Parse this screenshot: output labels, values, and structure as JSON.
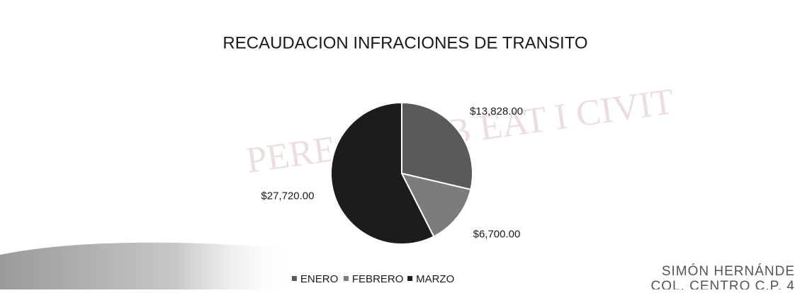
{
  "chart_data": {
    "type": "pie",
    "title": "RECAUDACION INFRACIONES DE TRANSITO",
    "categories": [
      "ENERO",
      "FEBRERO",
      "MARZO"
    ],
    "values": [
      13828,
      6700,
      27720
    ],
    "value_labels": [
      "$13,828.00",
      "$6,700.00",
      "$27,720.00"
    ],
    "colors": [
      "#5a5a5a",
      "#7c7c7c",
      "#1c1c1c"
    ],
    "legend": "bottom"
  },
  "watermark": "PEREGRINI B EAT I CIVIT",
  "footer": {
    "line1": "SIMÓN HERNÁNDE",
    "line2": "COL. CENTRO C.P. 4"
  }
}
